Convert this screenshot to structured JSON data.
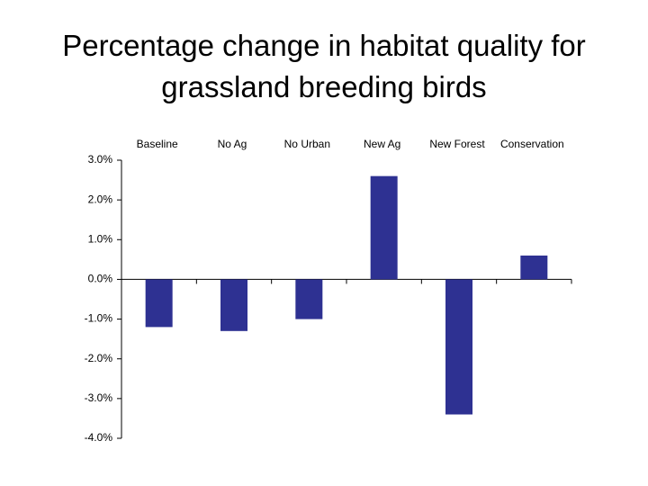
{
  "chart_data": {
    "type": "bar",
    "title": "Percentage change in habitat quality for grassland breeding birds",
    "categories": [
      "Baseline",
      "No Ag",
      "No Urban",
      "New Ag",
      "New Forest",
      "Conservation"
    ],
    "values": [
      -1.2,
      -1.3,
      -1.0,
      2.6,
      -3.4,
      0.6
    ],
    "color": "#2e3192",
    "ylim": [
      -4,
      3
    ],
    "yticks": [
      {
        "value": -4,
        "label": "-4.0%"
      },
      {
        "value": -3,
        "label": "-3.0%"
      },
      {
        "value": -2,
        "label": "-2.0%"
      },
      {
        "value": -1,
        "label": "-1.0%"
      },
      {
        "value": 0,
        "label": "0.0%"
      },
      {
        "value": 1,
        "label": "1.0%"
      },
      {
        "value": 2,
        "label": "2.0%"
      },
      {
        "value": 3,
        "label": "3.0%"
      }
    ],
    "grid": false
  }
}
